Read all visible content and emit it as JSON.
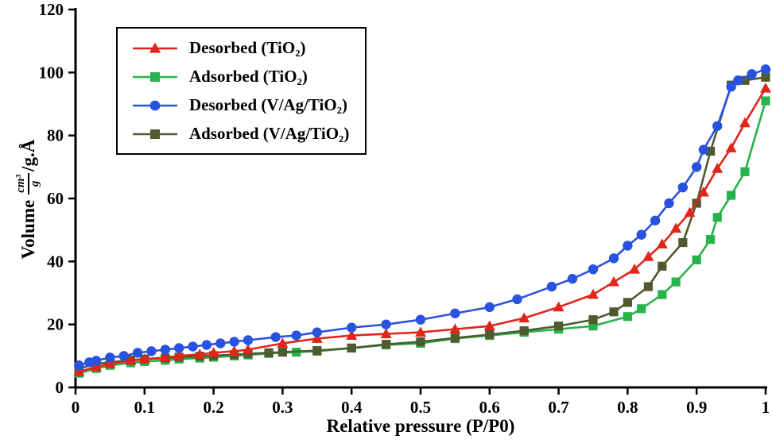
{
  "figure": {
    "background": "#ffffff",
    "text_color": "#000000"
  },
  "axes": {
    "y_prefix": "Volume",
    "y_frac_num": "cm³",
    "y_frac_den": "g",
    "y_suffix": "/g.Å"
  },
  "chart_data": {
    "type": "line",
    "title": "",
    "xlabel": "Relative pressure (P/P0)",
    "ylabel": "Volume (cm³/g)/g.Å",
    "xlim": [
      0,
      1
    ],
    "ylim": [
      0,
      120
    ],
    "xticks": [
      0,
      0.1,
      0.2,
      0.3,
      0.4,
      0.5,
      0.6,
      0.7,
      0.8,
      0.9,
      1
    ],
    "xtick_labels": [
      "0",
      "0.1",
      "0.2",
      "0.3",
      "0.4",
      "0.5",
      "0.6",
      "0.7",
      "0.8",
      "0.9",
      "1"
    ],
    "yticks": [
      0,
      20,
      40,
      60,
      80,
      100,
      120
    ],
    "ytick_labels": [
      "0",
      "20",
      "40",
      "60",
      "80",
      "100",
      "120"
    ],
    "grid": false,
    "legend_position": "top-left",
    "series": [
      {
        "name": "Desorbed (TiO₂)",
        "color": "#e1251b",
        "marker": "triangle",
        "x": [
          0.005,
          0.03,
          0.05,
          0.08,
          0.1,
          0.13,
          0.15,
          0.18,
          0.2,
          0.23,
          0.25,
          0.3,
          0.35,
          0.4,
          0.45,
          0.5,
          0.55,
          0.6,
          0.65,
          0.7,
          0.75,
          0.78,
          0.81,
          0.83,
          0.85,
          0.87,
          0.89,
          0.91,
          0.93,
          0.95,
          0.97,
          1.0
        ],
        "y": [
          5,
          6.5,
          7.5,
          8.5,
          9,
          9.5,
          10,
          10.5,
          11,
          11.5,
          12,
          14,
          15.5,
          16.5,
          17,
          17.5,
          18.5,
          19.5,
          22,
          25.5,
          29.5,
          33.5,
          37.5,
          41.5,
          45.5,
          50.5,
          55.5,
          62,
          69.5,
          76,
          84,
          95
        ]
      },
      {
        "name": "Adsorbed (TiO₂)",
        "color": "#28b24b",
        "marker": "square",
        "x": [
          0.005,
          0.03,
          0.05,
          0.08,
          0.1,
          0.13,
          0.15,
          0.18,
          0.2,
          0.23,
          0.25,
          0.28,
          0.32,
          0.35,
          0.4,
          0.45,
          0.5,
          0.55,
          0.6,
          0.65,
          0.7,
          0.75,
          0.8,
          0.82,
          0.85,
          0.87,
          0.9,
          0.92,
          0.93,
          0.95,
          0.97,
          1.0
        ],
        "y": [
          4.5,
          6,
          7,
          7.8,
          8.2,
          8.6,
          9,
          9.3,
          9.6,
          10,
          10.3,
          10.8,
          11.2,
          11.5,
          12.5,
          13.5,
          14,
          15.5,
          16.5,
          17.5,
          18.5,
          19.5,
          22.5,
          25,
          29.5,
          33.5,
          40.5,
          47,
          54,
          61,
          68.5,
          91
        ]
      },
      {
        "name": "Desorbed (V/Ag/TiO₂)",
        "color": "#2a52e0",
        "marker": "circle",
        "x": [
          0.005,
          0.02,
          0.03,
          0.05,
          0.07,
          0.09,
          0.11,
          0.13,
          0.15,
          0.17,
          0.19,
          0.21,
          0.23,
          0.25,
          0.29,
          0.32,
          0.35,
          0.4,
          0.45,
          0.5,
          0.55,
          0.6,
          0.64,
          0.69,
          0.72,
          0.75,
          0.78,
          0.8,
          0.82,
          0.84,
          0.86,
          0.88,
          0.9,
          0.91,
          0.93,
          0.95,
          0.96,
          0.98,
          1.0
        ],
        "y": [
          7,
          8,
          8.5,
          9.5,
          10,
          11,
          11.5,
          12,
          12.5,
          13,
          13.5,
          14,
          14.5,
          15,
          16,
          16.5,
          17.5,
          19,
          20,
          21.5,
          23.5,
          25.5,
          28,
          32,
          34.5,
          37.5,
          41,
          45,
          48.5,
          53,
          58.5,
          63.5,
          70,
          75.5,
          83,
          95.5,
          97.5,
          99.5,
          101
        ]
      },
      {
        "name": "Adsorbed (V/Ag/TiO₂)",
        "color": "#4e5b2f",
        "marker": "square",
        "x": [
          0.005,
          0.03,
          0.05,
          0.08,
          0.1,
          0.13,
          0.15,
          0.18,
          0.2,
          0.23,
          0.25,
          0.28,
          0.3,
          0.35,
          0.4,
          0.45,
          0.5,
          0.55,
          0.6,
          0.65,
          0.7,
          0.75,
          0.78,
          0.8,
          0.83,
          0.85,
          0.88,
          0.9,
          0.92,
          0.95,
          0.97,
          1.0
        ],
        "y": [
          6,
          7.5,
          8,
          8.7,
          9,
          9.3,
          9.6,
          9.9,
          10.1,
          10.4,
          10.7,
          11,
          11.2,
          11.7,
          12.5,
          13.7,
          14.5,
          15.7,
          16.8,
          18,
          19.5,
          21.5,
          24,
          27,
          32,
          38.5,
          46,
          58.5,
          75,
          96,
          97.5,
          98.5
        ]
      }
    ]
  }
}
